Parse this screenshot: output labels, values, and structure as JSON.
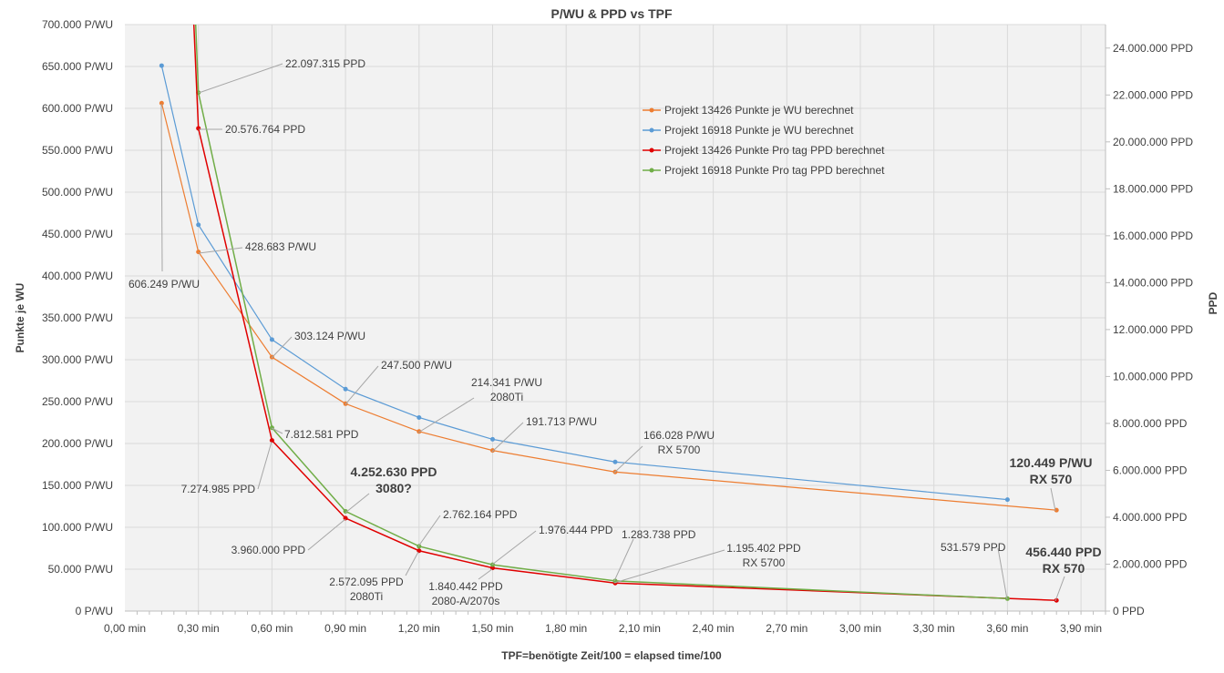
{
  "chart_data": {
    "type": "line",
    "title": "P/WU & PPD vs TPF",
    "xlabel": "TPF=benötigte Zeit/100 = elapsed time/100",
    "ylabel": "Punkte je WU",
    "y2label": "PPD",
    "xlim": [
      0,
      4.0
    ],
    "ylim": [
      0,
      700
    ],
    "y2lim": [
      0,
      25000000
    ],
    "x_ticks": [
      "0,00 min",
      "0,30 min",
      "0,60 min",
      "0,90 min",
      "1,20 min",
      "1,50 min",
      "1,80 min",
      "2,10 min",
      "2,40 min",
      "2,70 min",
      "3,00 min",
      "3,30 min",
      "3,60 min",
      "3,90 min"
    ],
    "y_ticks": [
      "0 P/WU",
      "50.000 P/WU",
      "100.000 P/WU",
      "150.000 P/WU",
      "200.000 P/WU",
      "250.000 P/WU",
      "300.000 P/WU",
      "350.000 P/WU",
      "400.000 P/WU",
      "450.000 P/WU",
      "500.000 P/WU",
      "550.000 P/WU",
      "600.000 P/WU",
      "650.000 P/WU",
      "700.000 P/WU"
    ],
    "y2_ticks": [
      "0 PPD",
      "2.000.000 PPD",
      "4.000.000 PPD",
      "6.000.000 PPD",
      "8.000.000 PPD",
      "10.000.000 PPD",
      "12.000.000 PPD",
      "14.000.000 PPD",
      "16.000.000 PPD",
      "18.000.000 PPD",
      "20.000.000 PPD",
      "22.000.000 PPD",
      "24.000.000 PPD"
    ],
    "grid": true,
    "legend_position": "top-center-right",
    "series": [
      {
        "name": "Projekt 13426 Punkte je WU berechnet",
        "axis": "left",
        "color": "#ED7D31",
        "x": [
          0.15,
          0.3,
          0.6,
          0.9,
          1.2,
          1.5,
          2.0,
          3.8
        ],
        "y": [
          606.249,
          428.683,
          303.124,
          247.5,
          214.341,
          191.713,
          166.028,
          120.449
        ]
      },
      {
        "name": "Projekt 16918 Punkte je WU berechnet",
        "axis": "left",
        "color": "#5B9BD5",
        "x": [
          0.15,
          0.3,
          0.6,
          0.9,
          1.2,
          1.5,
          2.0,
          3.6
        ],
        "y": [
          651,
          461,
          324,
          265,
          231,
          205,
          178,
          133
        ]
      },
      {
        "name": "Projekt 13426 Punkte Pro tag PPD berechnet",
        "axis": "right",
        "color": "#E00000",
        "x": [
          0.3,
          0.6,
          0.9,
          1.2,
          1.5,
          2.0,
          3.8
        ],
        "y": [
          20576764,
          7274985,
          3960000,
          2572095,
          1840442,
          1195402,
          456440
        ]
      },
      {
        "name": "Projekt 16918 Punkte Pro tag PPD berechnet",
        "axis": "right",
        "color": "#70AD47",
        "x": [
          0.3,
          0.6,
          0.9,
          1.2,
          1.5,
          2.0,
          3.6
        ],
        "y": [
          22097315,
          7812581,
          4252630,
          2762164,
          1976444,
          1283738,
          531579
        ]
      }
    ],
    "annotations": [
      {
        "lines": [
          "606.249 P/WU"
        ],
        "bold": false
      },
      {
        "lines": [
          "428.683 P/WU"
        ],
        "bold": false
      },
      {
        "lines": [
          "22.097.315 PPD"
        ],
        "bold": false
      },
      {
        "lines": [
          "20.576.764 PPD"
        ],
        "bold": false
      },
      {
        "lines": [
          "303.124 P/WU"
        ],
        "bold": false
      },
      {
        "lines": [
          "247.500 P/WU"
        ],
        "bold": false
      },
      {
        "lines": [
          "214.341 P/WU",
          "2080Ti"
        ],
        "bold": false
      },
      {
        "lines": [
          "191.713 P/WU"
        ],
        "bold": false
      },
      {
        "lines": [
          "166.028 P/WU",
          "RX 5700"
        ],
        "bold": false
      },
      {
        "lines": [
          "120.449 P/WU",
          "RX 570"
        ],
        "bold": true
      },
      {
        "lines": [
          "7.812.581 PPD"
        ],
        "bold": false
      },
      {
        "lines": [
          "7.274.985 PPD"
        ],
        "bold": false
      },
      {
        "lines": [
          "4.252.630 PPD",
          "3080?"
        ],
        "bold": true
      },
      {
        "lines": [
          "3.960.000 PPD"
        ],
        "bold": false
      },
      {
        "lines": [
          "2.762.164 PPD"
        ],
        "bold": false
      },
      {
        "lines": [
          "2.572.095 PPD",
          "2080Ti"
        ],
        "bold": false
      },
      {
        "lines": [
          "1.976.444 PPD"
        ],
        "bold": false
      },
      {
        "lines": [
          "1.840.442 PPD",
          "2080-A/2070s"
        ],
        "bold": false
      },
      {
        "lines": [
          "1.283.738 PPD"
        ],
        "bold": false
      },
      {
        "lines": [
          "1.195.402 PPD",
          "RX 5700"
        ],
        "bold": false
      },
      {
        "lines": [
          "531.579 PPD"
        ],
        "bold": false
      },
      {
        "lines": [
          "456.440 PPD",
          "RX 570"
        ],
        "bold": true
      }
    ]
  }
}
